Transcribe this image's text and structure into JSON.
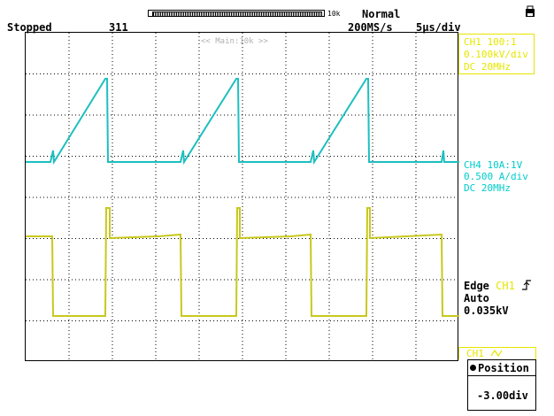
{
  "header": {
    "status": "Stopped",
    "acquisition_count": "311",
    "record_length": "10k",
    "trigger_mode": "Normal",
    "sample_rate": "200MS/s",
    "timebase": "5μs/div",
    "zoom_label": "<< Main:10k >>"
  },
  "channels": {
    "ch1": {
      "line1": "CH1 100:1",
      "line2": "0.100kV/div",
      "line3": "DC   20MHz",
      "color": "#00cccc"
    },
    "ch4": {
      "line1": "CH4 10A:1V",
      "line2": "0.500 A/div",
      "line3": "DC   20MHz",
      "color": "#cccc00"
    }
  },
  "trigger": {
    "type": "Edge",
    "source": "CH1",
    "mode": "Auto",
    "level": "0.035kV"
  },
  "position_menu": {
    "tab": "CH1",
    "title": "Position",
    "value": "-3.00div"
  },
  "colors": {
    "ch1": "#1ebfc0",
    "ch4": "#c8c81e",
    "ch1_box": "#e6e600"
  }
}
